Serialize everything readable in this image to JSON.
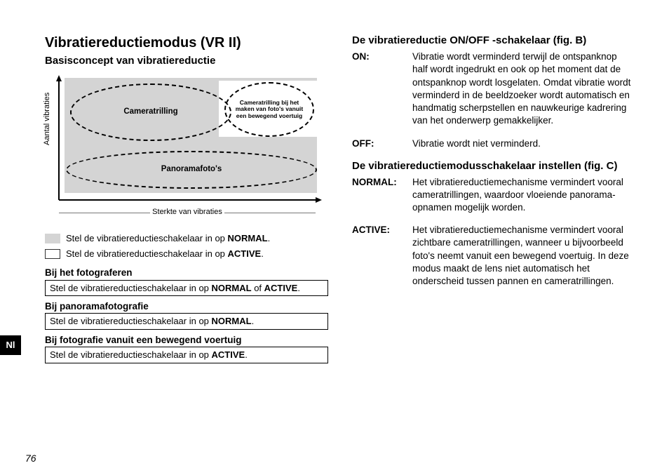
{
  "page_number": "76",
  "tab": "Nl",
  "left": {
    "title": "Vibratiereductiemodus (VR II)",
    "subtitle": "Basisconcept van vibratiereductie",
    "diagram": {
      "y_label": "Aantal vibraties",
      "x_label": "Sterkte van vibraties",
      "ellipse1": "Cameratrilling",
      "ellipse2": "Cameratrilling bij het maken van foto's vanuit een bewegend voertuig",
      "ellipse3": "Panoramafoto's"
    },
    "legend": {
      "grey_prefix": "Stel de vibratiereductieschakelaar in op ",
      "grey_bold": "NORMAL",
      "grey_suffix": ".",
      "white_prefix": "Stel de vibratiereductieschakelaar in op ",
      "white_bold": "ACTIVE",
      "white_suffix": "."
    },
    "tips": [
      {
        "title": "Bij het fotograferen",
        "body_pre": "Stel de vibratiereductieschakelaar in op ",
        "body_bold": "NORMAL",
        "body_mid": " of ",
        "body_bold2": "ACTIVE",
        "body_post": "."
      },
      {
        "title": "Bij panoramafotografie",
        "body_pre": "Stel de vibratiereductieschakelaar in op ",
        "body_bold": "NORMAL",
        "body_mid": "",
        "body_bold2": "",
        "body_post": "."
      },
      {
        "title": "Bij fotografie vanuit een bewegend voertuig",
        "body_pre": "Stel de vibratiereductieschakelaar in op ",
        "body_bold": "ACTIVE",
        "body_mid": "",
        "body_bold2": "",
        "body_post": "."
      }
    ]
  },
  "right": {
    "section_b_title": "De vibratiereductie ON/OFF -schakelaar (fig. B)",
    "on_term": "ON",
    "on_body": "Vibratie wordt verminderd terwijl de ontspanknop half wordt ingedrukt en ook op het moment dat de ontspanknop wordt losgelaten. Omdat vibratie wordt verminderd in de beeldzoeker wordt automatisch en handmatig scherpstellen en nauwkeurige kadrering van het onderwerp gemakkelijker.",
    "off_term": "OFF",
    "off_body": "Vibratie wordt niet verminderd.",
    "section_c_title": "De vibratiereductiemodusschakelaar instellen (fig. C)",
    "normal_term": "NORMAL",
    "normal_body": "Het vibratiereductiemechanisme vermindert vooral cameratrillingen, waardoor vloeiende panorama-opnamen mogelijk worden.",
    "active_term": "ACTIVE",
    "active_body": "Het vibratiereductiemechanisme vermindert vooral zichtbare cameratrillingen, wanneer u bijvoorbeeld foto's neemt vanuit een bewegend voertuig. In deze modus maakt de lens niet automatisch het onderscheid tussen pannen en cameratrillingen."
  }
}
